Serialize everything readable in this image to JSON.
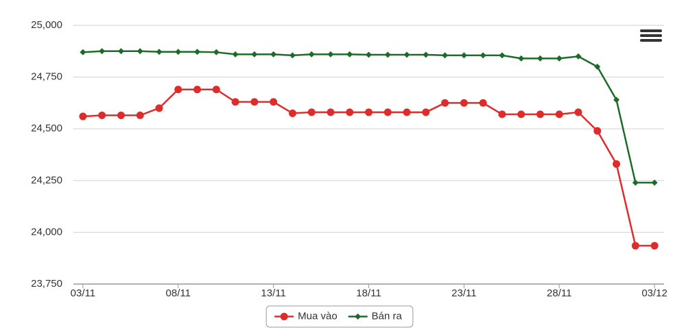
{
  "chart_data": {
    "type": "line",
    "categories": [
      "03/11",
      null,
      null,
      null,
      null,
      "08/11",
      null,
      null,
      null,
      null,
      "13/11",
      null,
      null,
      null,
      null,
      "18/11",
      null,
      null,
      null,
      null,
      "23/11",
      null,
      null,
      null,
      null,
      "28/11",
      null,
      null,
      null,
      null,
      "03/12"
    ],
    "series": [
      {
        "name": "Mua vào",
        "color": "#e02b2b",
        "marker": "circle",
        "values": [
          24560,
          24565,
          24565,
          24565,
          24600,
          24690,
          24690,
          24690,
          24630,
          24630,
          24630,
          24575,
          24580,
          24580,
          24580,
          24580,
          24580,
          24580,
          24580,
          24625,
          24625,
          24625,
          24570,
          24570,
          24570,
          24570,
          24580,
          24490,
          24330,
          23935,
          23935
        ]
      },
      {
        "name": "Bán ra",
        "color": "#1d6b28",
        "marker": "diamond",
        "values": [
          24870,
          24875,
          24875,
          24875,
          24872,
          24872,
          24872,
          24870,
          24860,
          24860,
          24860,
          24855,
          24860,
          24860,
          24860,
          24858,
          24858,
          24858,
          24858,
          24855,
          24855,
          24855,
          24855,
          24840,
          24840,
          24840,
          24850,
          24800,
          24640,
          24240,
          24240
        ]
      }
    ],
    "ylim": [
      23750,
      25000
    ],
    "yticks": [
      {
        "value": 23750,
        "label": "23,750"
      },
      {
        "value": 24000,
        "label": "24,000"
      },
      {
        "value": 24250,
        "label": "24,250"
      },
      {
        "value": 24500,
        "label": "24,500"
      },
      {
        "value": 24750,
        "label": "24,750"
      },
      {
        "value": 25000,
        "label": "25,000"
      }
    ],
    "grid": true,
    "legend": "bottom"
  }
}
